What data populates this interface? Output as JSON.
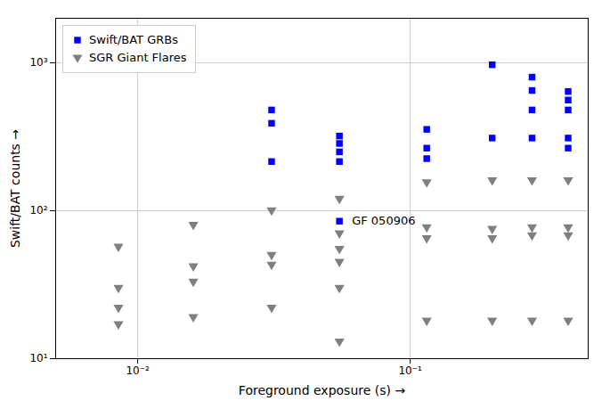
{
  "chart_data": {
    "type": "scatter",
    "xlabel": "Foreground exposure (s)",
    "ylabel": "Swift/BAT counts",
    "log": true,
    "xlim": [
      0.005,
      0.45
    ],
    "ylim": [
      10,
      2000
    ],
    "xticks": [
      {
        "value": 0.01,
        "label": "10⁻²"
      },
      {
        "value": 0.1,
        "label": "10⁻¹"
      }
    ],
    "yticks": [
      {
        "value": 10,
        "label": "10¹"
      },
      {
        "value": 100,
        "label": "10²"
      },
      {
        "value": 1000,
        "label": "10³"
      }
    ],
    "grid": true,
    "legend": "upper left",
    "series": [
      {
        "name": "Swift/BAT GRBs",
        "color": "#0000FF",
        "marker": "square",
        "x": [
          0.031,
          0.031,
          0.031,
          0.055,
          0.055,
          0.055,
          0.055,
          0.055,
          0.115,
          0.115,
          0.115,
          0.2,
          0.2,
          0.28,
          0.28,
          0.28,
          0.28,
          0.38,
          0.38,
          0.38,
          0.38,
          0.38
        ],
        "values": [
          480,
          390,
          215,
          320,
          285,
          250,
          215,
          85,
          355,
          265,
          225,
          970,
          310,
          800,
          650,
          480,
          310,
          640,
          560,
          480,
          310,
          265
        ]
      },
      {
        "name": "SGR Giant Flares",
        "color": "#7f7f7f",
        "marker": "triangle-down",
        "x": [
          0.0085,
          0.0085,
          0.0085,
          0.0085,
          0.016,
          0.016,
          0.016,
          0.016,
          0.031,
          0.031,
          0.031,
          0.031,
          0.055,
          0.055,
          0.055,
          0.055,
          0.055,
          0.055,
          0.115,
          0.115,
          0.115,
          0.115,
          0.2,
          0.2,
          0.2,
          0.2,
          0.28,
          0.28,
          0.28,
          0.28,
          0.38,
          0.38,
          0.38,
          0.38
        ],
        "values": [
          57,
          30,
          22,
          17,
          80,
          42,
          33,
          19,
          100,
          50,
          43,
          22,
          120,
          70,
          55,
          45,
          30,
          13,
          155,
          77,
          65,
          18,
          160,
          75,
          65,
          18,
          160,
          77,
          68,
          18,
          160,
          77,
          68,
          18
        ]
      }
    ],
    "annotations": [
      {
        "text": "GF 050906",
        "x": 0.055,
        "y": 85
      }
    ]
  }
}
